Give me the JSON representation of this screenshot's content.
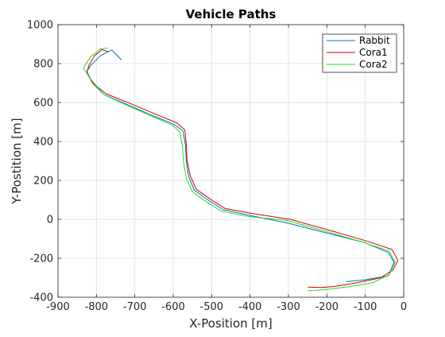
{
  "chart_data": {
    "type": "line",
    "title": "Vehicle Paths",
    "xlabel": "X-Position [m]",
    "ylabel": "Y-Postition [m]",
    "xlim": [
      -900,
      0
    ],
    "ylim": [
      -400,
      1000
    ],
    "xticks": [
      -900,
      -800,
      -700,
      -600,
      -500,
      -400,
      -300,
      -200,
      -100,
      0
    ],
    "yticks": [
      -400,
      -200,
      0,
      200,
      400,
      600,
      800,
      1000
    ],
    "xtick_labels": [
      "-900",
      "-800",
      "-700",
      "-600",
      "-500",
      "-400",
      "-300",
      "-200",
      "-100",
      "0"
    ],
    "ytick_labels": [
      "-400",
      "-200",
      "0",
      "200",
      "400",
      "600",
      "800",
      "1000"
    ],
    "grid": true,
    "legend_position": "top-right",
    "series": [
      {
        "name": "Rabbit",
        "color": "#0072BD",
        "x": [
          -735,
          -760,
          -790,
          -815,
          -825,
          -810,
          -780,
          -720,
          -650,
          -600,
          -575,
          -568,
          -566,
          -560,
          -545,
          -510,
          -470,
          -400,
          -300,
          -200,
          -100,
          -40,
          -25,
          -40,
          -100,
          -150
        ],
        "y": [
          820,
          870,
          840,
          790,
          760,
          700,
          640,
          590,
          530,
          490,
          455,
          380,
          300,
          220,
          150,
          100,
          50,
          20,
          -20,
          -70,
          -120,
          -170,
          -220,
          -290,
          -310,
          -320
        ]
      },
      {
        "name": "Cora1",
        "color": "#D60000",
        "x": [
          -768,
          -785,
          -805,
          -820,
          -825,
          -810,
          -775,
          -712,
          -642,
          -592,
          -570,
          -566,
          -564,
          -556,
          -540,
          -505,
          -465,
          -395,
          -295,
          -195,
          -95,
          -30,
          -15,
          -28,
          -60,
          -120,
          -180,
          -215,
          -250
        ],
        "y": [
          860,
          872,
          840,
          790,
          752,
          700,
          645,
          595,
          537,
          497,
          460,
          385,
          305,
          225,
          155,
          106,
          56,
          30,
          0,
          -55,
          -112,
          -155,
          -212,
          -260,
          -300,
          -325,
          -345,
          -350,
          -348
        ]
      },
      {
        "name": "Cora2",
        "color": "#22DD22",
        "x": [
          -770,
          -790,
          -815,
          -830,
          -833,
          -815,
          -780,
          -720,
          -650,
          -603,
          -582,
          -576,
          -573,
          -566,
          -550,
          -515,
          -475,
          -405,
          -305,
          -205,
          -105,
          -38,
          -22,
          -38,
          -80,
          -140,
          -200,
          -250
        ],
        "y": [
          880,
          875,
          835,
          790,
          775,
          720,
          640,
          585,
          525,
          485,
          447,
          372,
          292,
          212,
          142,
          92,
          42,
          15,
          -5,
          -60,
          -118,
          -163,
          -220,
          -285,
          -325,
          -345,
          -360,
          -367
        ]
      }
    ]
  }
}
